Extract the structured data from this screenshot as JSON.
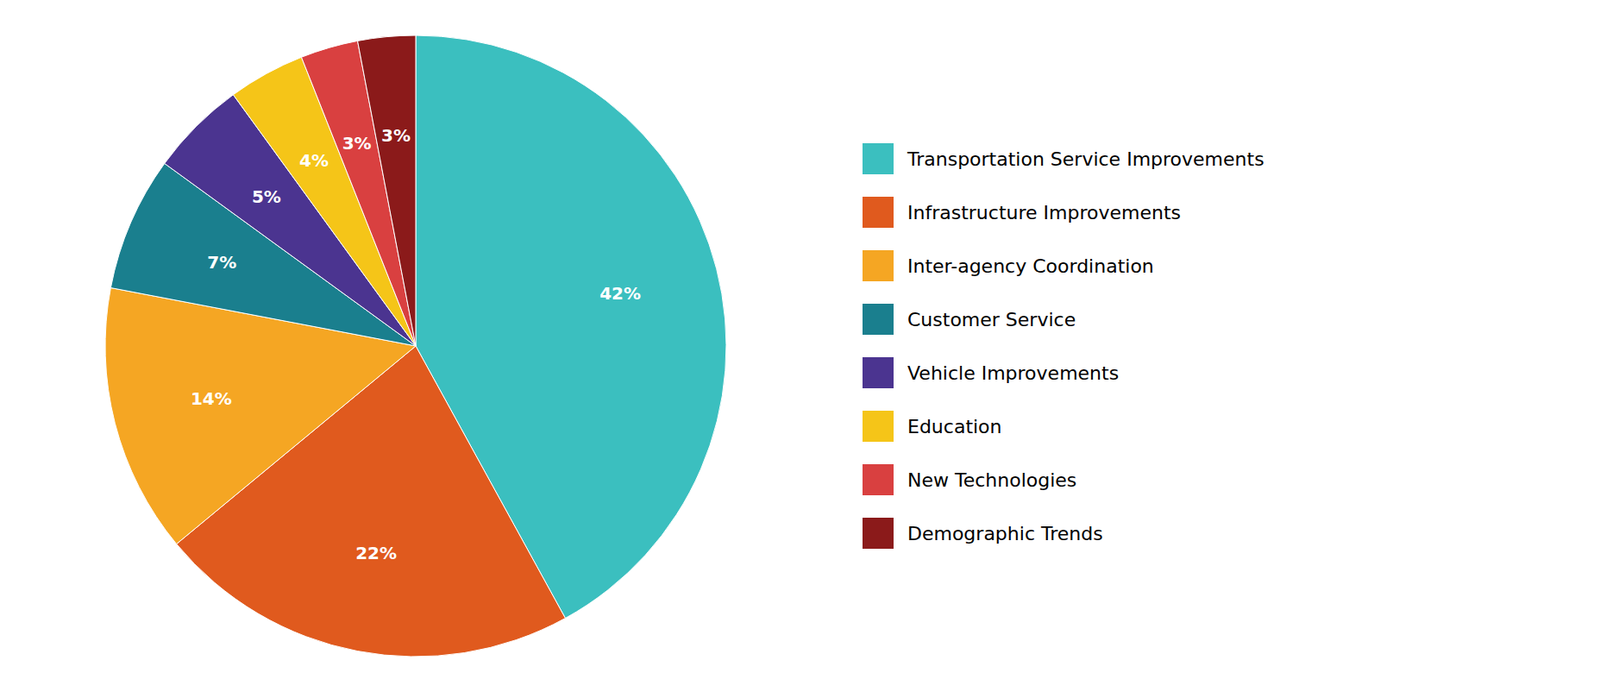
{
  "chart_data": {
    "type": "pie",
    "categories": [
      "Transportation Service Improvements",
      "Infrastructure Improvements",
      "Inter-agency Coordination",
      "Customer Service",
      "Vehicle Improvements",
      "Education",
      "New Technologies",
      "Demographic Trends"
    ],
    "values": [
      42,
      22,
      14,
      7,
      5,
      4,
      3,
      3
    ],
    "value_labels": [
      "42%",
      "22%",
      "14%",
      "7%",
      "5%",
      "4%",
      "3%",
      "3%"
    ],
    "colors": [
      "#3bbfbf",
      "#e05a1e",
      "#f5a623",
      "#1a7f8e",
      "#4b3490",
      "#f5c518",
      "#d94040",
      "#8b1a1a"
    ],
    "data_labels": true,
    "legend": "right"
  }
}
